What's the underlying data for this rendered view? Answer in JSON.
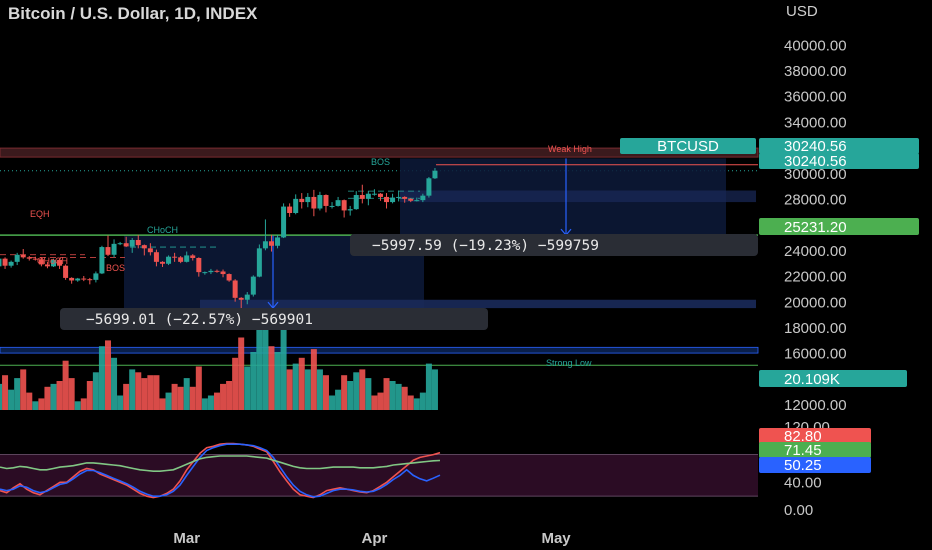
{
  "header": {
    "title": "Bitcoin / U.S. Dollar, 1D, INDEX",
    "currency": "USD"
  },
  "y_ticks": [
    "40000.00",
    "38000.00",
    "36000.00",
    "34000.00",
    "32000.00",
    "30000.00",
    "28000.00",
    "26000.00",
    "24000.00",
    "22000.00",
    "20000.00",
    "18000.00",
    "16000.00",
    "14000.00",
    "12000.00"
  ],
  "osc_ticks": [
    "120.00",
    "40.00",
    "0.00"
  ],
  "x_labels": [
    "Mar",
    "Apr",
    "May"
  ],
  "tags": {
    "symbol": "BTCUSD",
    "price_1": "30240.56",
    "price_2": "30240.56",
    "level": "25231.20",
    "volume": "20.109K",
    "osc_1": "82.80",
    "osc_2": "71.45",
    "osc_3": "50.25"
  },
  "annotations": {
    "eqh": "EQH",
    "choch_left": "CHoCH",
    "choch_mid": "CHoCH",
    "bos_left": "BOS",
    "bos_top": "BOS",
    "weak_high": "Weak High",
    "strong_low": "Strong Low"
  },
  "measures": {
    "left": "−5699.01 (−22.57%) −569901",
    "right": "−5997.59 (−19.23%) −599759"
  },
  "colors": {
    "up": "#26a69a",
    "down": "#ef5350",
    "green_line": "#4caf50",
    "blue": "#2962ff",
    "band": "#3a1030"
  },
  "chart_data": {
    "type": "candlestick",
    "title": "Bitcoin / U.S. Dollar, 1D, INDEX",
    "ylabel": "USD",
    "ylim": [
      11000,
      41500
    ],
    "x_range": [
      "2023-01-29",
      "2023-05-18"
    ],
    "candles": [
      [
        "2023-01-29",
        22800,
        23700,
        22700,
        23400
      ],
      [
        "2023-01-30",
        23400,
        23500,
        22600,
        22850
      ],
      [
        "2023-01-31",
        22850,
        23250,
        22700,
        23150
      ],
      [
        "2023-02-01",
        23150,
        23850,
        22900,
        23700
      ],
      [
        "2023-02-02",
        23700,
        24150,
        23400,
        23500
      ],
      [
        "2023-02-03",
        23500,
        23600,
        23250,
        23400
      ],
      [
        "2023-02-04",
        23400,
        23550,
        23250,
        23350
      ],
      [
        "2023-02-05",
        23350,
        23450,
        22800,
        22950
      ],
      [
        "2023-02-06",
        22950,
        23150,
        22650,
        22800
      ],
      [
        "2023-02-07",
        22800,
        23400,
        22750,
        23300
      ],
      [
        "2023-02-08",
        23300,
        23400,
        22600,
        22850
      ],
      [
        "2023-02-09",
        22850,
        22950,
        21750,
        21900
      ],
      [
        "2023-02-10",
        21900,
        21950,
        21450,
        21700
      ],
      [
        "2023-02-11",
        21700,
        21900,
        21600,
        21850
      ],
      [
        "2023-02-12",
        21850,
        22050,
        21650,
        21800
      ],
      [
        "2023-02-13",
        21800,
        21900,
        21400,
        21750
      ],
      [
        "2023-02-14",
        21750,
        22400,
        21550,
        22250
      ],
      [
        "2023-02-15",
        22250,
        24400,
        22200,
        24300
      ],
      [
        "2023-02-16",
        24300,
        25200,
        23600,
        23700
      ],
      [
        "2023-02-17",
        23700,
        24900,
        23500,
        24550
      ],
      [
        "2023-02-18",
        24550,
        24700,
        24450,
        24600
      ],
      [
        "2023-02-19",
        24600,
        25100,
        24300,
        24350
      ],
      [
        "2023-02-20",
        24350,
        25000,
        23850,
        24850
      ],
      [
        "2023-02-21",
        24850,
        25250,
        24200,
        24450
      ],
      [
        "2023-02-22",
        24450,
        24500,
        23650,
        24200
      ],
      [
        "2023-02-23",
        24200,
        24600,
        23650,
        23900
      ],
      [
        "2023-02-24",
        23900,
        24100,
        22800,
        23150
      ],
      [
        "2023-02-25",
        23150,
        23200,
        22750,
        23000
      ],
      [
        "2023-02-26",
        23000,
        23650,
        22900,
        23550
      ],
      [
        "2023-02-27",
        23550,
        23850,
        23150,
        23500
      ],
      [
        "2023-02-28",
        23500,
        23600,
        23050,
        23150
      ],
      [
        "2023-03-01",
        23150,
        23950,
        23100,
        23650
      ],
      [
        "2023-03-02",
        23650,
        23750,
        23250,
        23450
      ],
      [
        "2023-03-03",
        23450,
        23500,
        22000,
        22350
      ],
      [
        "2023-03-04",
        22350,
        22400,
        22150,
        22350
      ],
      [
        "2023-03-05",
        22350,
        22600,
        22200,
        22450
      ],
      [
        "2023-03-06",
        22450,
        22550,
        22300,
        22400
      ],
      [
        "2023-03-07",
        22400,
        22550,
        21950,
        22200
      ],
      [
        "2023-03-08",
        22200,
        22250,
        21600,
        21700
      ],
      [
        "2023-03-09",
        21700,
        21800,
        20050,
        20350
      ],
      [
        "2023-03-10",
        20350,
        20400,
        19550,
        20200
      ],
      [
        "2023-03-11",
        20200,
        20800,
        19850,
        20600
      ],
      [
        "2023-03-12",
        20600,
        22100,
        20450,
        22000
      ],
      [
        "2023-03-13",
        22000,
        24500,
        21950,
        24200
      ],
      [
        "2023-03-14",
        24200,
        26450,
        24050,
        24750
      ],
      [
        "2023-03-15",
        24750,
        25250,
        23950,
        24400
      ],
      [
        "2023-03-16",
        24400,
        25250,
        24200,
        25050
      ],
      [
        "2023-03-17",
        25050,
        27700,
        25000,
        27450
      ],
      [
        "2023-03-18",
        27450,
        27700,
        26650,
        26950
      ],
      [
        "2023-03-19",
        26950,
        28400,
        26850,
        28050
      ],
      [
        "2023-03-20",
        28050,
        28500,
        27300,
        27800
      ],
      [
        "2023-03-21",
        27800,
        28500,
        27400,
        28200
      ],
      [
        "2023-03-22",
        28200,
        28750,
        26700,
        27300
      ],
      [
        "2023-03-23",
        27300,
        28600,
        27150,
        28350
      ],
      [
        "2023-03-24",
        28350,
        28400,
        27000,
        27500
      ],
      [
        "2023-03-25",
        27500,
        27800,
        27300,
        27500
      ],
      [
        "2023-03-26",
        27500,
        28200,
        27450,
        27950
      ],
      [
        "2023-03-27",
        27950,
        28000,
        26600,
        27150
      ],
      [
        "2023-03-28",
        27150,
        27500,
        26750,
        27250
      ],
      [
        "2023-03-29",
        27250,
        28650,
        27200,
        28350
      ],
      [
        "2023-03-30",
        28350,
        29150,
        27700,
        28050
      ],
      [
        "2023-03-31",
        28050,
        28650,
        27550,
        28450
      ],
      [
        "2023-04-01",
        28450,
        28800,
        28300,
        28450
      ],
      [
        "2023-04-02",
        28450,
        28500,
        27900,
        28200
      ],
      [
        "2023-04-03",
        28200,
        28500,
        27300,
        27800
      ],
      [
        "2023-04-04",
        27800,
        28450,
        27700,
        28150
      ],
      [
        "2023-04-05",
        28150,
        28700,
        27850,
        28200
      ],
      [
        "2023-04-06",
        28200,
        28250,
        27750,
        28050
      ],
      [
        "2023-04-07",
        28050,
        28100,
        27800,
        27900
      ],
      [
        "2023-04-08",
        27900,
        28150,
        27850,
        27950
      ],
      [
        "2023-04-09",
        27950,
        28450,
        27800,
        28300
      ],
      [
        "2023-04-10",
        28300,
        29750,
        28150,
        29650
      ],
      [
        "2023-04-11",
        29650,
        30450,
        29600,
        30240.56
      ]
    ],
    "volume": [
      [
        "2023-01-29",
        9,
        "up"
      ],
      [
        "2023-01-30",
        12,
        "down"
      ],
      [
        "2023-01-31",
        7,
        "up"
      ],
      [
        "2023-02-01",
        11,
        "up"
      ],
      [
        "2023-02-02",
        14,
        "down"
      ],
      [
        "2023-02-03",
        6,
        "down"
      ],
      [
        "2023-02-04",
        3,
        "up"
      ],
      [
        "2023-02-05",
        4,
        "down"
      ],
      [
        "2023-02-06",
        8,
        "down"
      ],
      [
        "2023-02-07",
        9,
        "up"
      ],
      [
        "2023-02-08",
        10,
        "down"
      ],
      [
        "2023-02-09",
        17,
        "down"
      ],
      [
        "2023-02-10",
        11,
        "down"
      ],
      [
        "2023-02-11",
        3,
        "up"
      ],
      [
        "2023-02-12",
        4,
        "down"
      ],
      [
        "2023-02-13",
        10,
        "down"
      ],
      [
        "2023-02-14",
        13,
        "up"
      ],
      [
        "2023-02-15",
        22,
        "up"
      ],
      [
        "2023-02-16",
        24,
        "down"
      ],
      [
        "2023-02-17",
        18,
        "up"
      ],
      [
        "2023-02-18",
        5,
        "up"
      ],
      [
        "2023-02-19",
        9,
        "down"
      ],
      [
        "2023-02-20",
        14,
        "up"
      ],
      [
        "2023-02-21",
        13,
        "down"
      ],
      [
        "2023-02-22",
        11,
        "down"
      ],
      [
        "2023-02-23",
        12,
        "down"
      ],
      [
        "2023-02-24",
        12,
        "down"
      ],
      [
        "2023-02-25",
        4,
        "down"
      ],
      [
        "2023-02-26",
        6,
        "up"
      ],
      [
        "2023-02-27",
        9,
        "down"
      ],
      [
        "2023-02-28",
        8,
        "down"
      ],
      [
        "2023-03-01",
        11,
        "up"
      ],
      [
        "2023-03-02",
        8,
        "down"
      ],
      [
        "2023-03-03",
        15,
        "down"
      ],
      [
        "2023-03-04",
        4,
        "up"
      ],
      [
        "2023-03-05",
        5,
        "up"
      ],
      [
        "2023-03-06",
        6,
        "down"
      ],
      [
        "2023-03-07",
        9,
        "down"
      ],
      [
        "2023-03-08",
        10,
        "down"
      ],
      [
        "2023-03-09",
        18,
        "down"
      ],
      [
        "2023-03-10",
        25,
        "down"
      ],
      [
        "2023-03-11",
        15,
        "up"
      ],
      [
        "2023-03-12",
        20,
        "up"
      ],
      [
        "2023-03-13",
        30,
        "up"
      ],
      [
        "2023-03-14",
        34,
        "up"
      ],
      [
        "2023-03-15",
        22,
        "down"
      ],
      [
        "2023-03-16",
        20,
        "up"
      ],
      [
        "2023-03-17",
        31,
        "up"
      ],
      [
        "2023-03-18",
        14,
        "down"
      ],
      [
        "2023-03-19",
        16,
        "up"
      ],
      [
        "2023-03-20",
        18,
        "down"
      ],
      [
        "2023-03-21",
        14,
        "up"
      ],
      [
        "2023-03-22",
        21,
        "down"
      ],
      [
        "2023-03-23",
        14,
        "up"
      ],
      [
        "2023-03-24",
        12,
        "down"
      ],
      [
        "2023-03-25",
        5,
        "up"
      ],
      [
        "2023-03-26",
        7,
        "up"
      ],
      [
        "2023-03-27",
        12,
        "down"
      ],
      [
        "2023-03-28",
        10,
        "up"
      ],
      [
        "2023-03-29",
        13,
        "up"
      ],
      [
        "2023-03-30",
        14,
        "down"
      ],
      [
        "2023-03-31",
        11,
        "up"
      ],
      [
        "2023-04-01",
        5,
        "down"
      ],
      [
        "2023-04-02",
        6,
        "down"
      ],
      [
        "2023-04-03",
        11,
        "down"
      ],
      [
        "2023-04-04",
        10,
        "up"
      ],
      [
        "2023-04-05",
        9,
        "up"
      ],
      [
        "2023-04-06",
        8,
        "down"
      ],
      [
        "2023-04-07",
        5,
        "down"
      ],
      [
        "2023-04-08",
        4,
        "up"
      ],
      [
        "2023-04-09",
        6,
        "up"
      ],
      [
        "2023-04-10",
        16,
        "up"
      ],
      [
        "2023-04-11",
        14,
        "up"
      ]
    ],
    "volume_last": "20.109K",
    "oscillator": {
      "ylim": [
        0,
        130
      ],
      "band": [
        20,
        80
      ],
      "series": [
        {
          "color": "#ef5350",
          "last": 82.8,
          "values": [
            28,
            25,
            32,
            38,
            30,
            25,
            22,
            28,
            34,
            40,
            40,
            48,
            56,
            60,
            58,
            52,
            48,
            44,
            40,
            36,
            30,
            24,
            20,
            18,
            20,
            24,
            30,
            42,
            58,
            70,
            82,
            90,
            92,
            95,
            96,
            96,
            95,
            94,
            92,
            88,
            84,
            70,
            55,
            42,
            30,
            22,
            20,
            18,
            22,
            28,
            30,
            32,
            30,
            28,
            26,
            25,
            28,
            34,
            40,
            48,
            56,
            64,
            72,
            76,
            78,
            80,
            82.8
          ]
        },
        {
          "color": "#2962ff",
          "last": 50.25,
          "values": [
            30,
            28,
            30,
            35,
            33,
            28,
            25,
            27,
            32,
            37,
            39,
            45,
            52,
            57,
            57,
            54,
            50,
            46,
            42,
            38,
            33,
            27,
            23,
            20,
            20,
            22,
            27,
            36,
            50,
            63,
            76,
            86,
            90,
            93,
            95,
            95,
            95,
            94,
            93,
            90,
            86,
            76,
            62,
            48,
            36,
            27,
            22,
            19,
            20,
            24,
            28,
            30,
            30,
            29,
            27,
            26,
            27,
            31,
            37,
            44,
            50,
            58,
            50,
            45,
            42,
            46,
            50.25
          ]
        },
        {
          "color": "#81c784",
          "last": 71.45,
          "values": [
            62,
            60,
            61,
            63,
            62,
            60,
            58,
            58,
            60,
            62,
            63,
            64,
            66,
            68,
            68,
            67,
            66,
            65,
            64,
            62,
            60,
            58,
            57,
            56,
            56,
            57,
            58,
            62,
            66,
            70,
            74,
            76,
            77,
            78,
            78,
            78,
            78,
            78,
            77,
            76,
            75,
            72,
            69,
            66,
            63,
            61,
            60,
            60,
            60,
            61,
            62,
            62,
            62,
            62,
            61,
            61,
            61,
            62,
            63,
            65,
            66,
            67,
            68,
            69,
            70,
            71,
            71.45
          ]
        }
      ]
    },
    "levels": [
      {
        "name": "resistance zone",
        "from": 31300,
        "to": 32000
      },
      {
        "name": "green line",
        "value": 25231.2
      }
    ]
  }
}
